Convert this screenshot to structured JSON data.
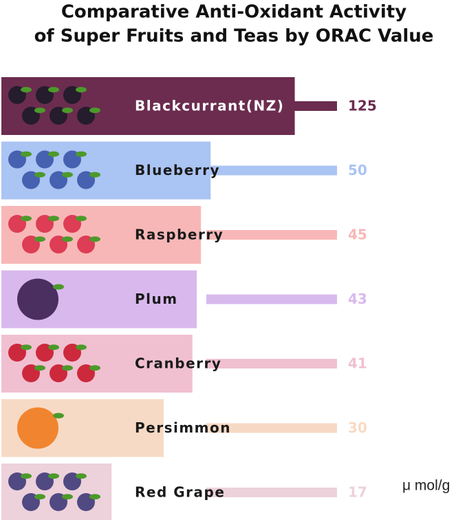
{
  "chart_data": {
    "type": "bar",
    "title": [
      "Comparative Anti-Oxidant Activity",
      "of Super Fruits and Teas by ORAC Value"
    ],
    "categories": [
      "Blackcurrant(NZ)",
      "Blueberry",
      "Raspberry",
      "Plum",
      "Cranberry",
      "Persimmon",
      "Red Grape"
    ],
    "values": [
      125,
      50,
      45,
      43,
      41,
      30,
      17
    ],
    "colors": [
      "#6b2c4f",
      "#aac4f3",
      "#f8b7b7",
      "#d9b9ed",
      "#f0c0d1",
      "#f7dac5",
      "#edd1db"
    ],
    "unit": "μ mol/g"
  }
}
